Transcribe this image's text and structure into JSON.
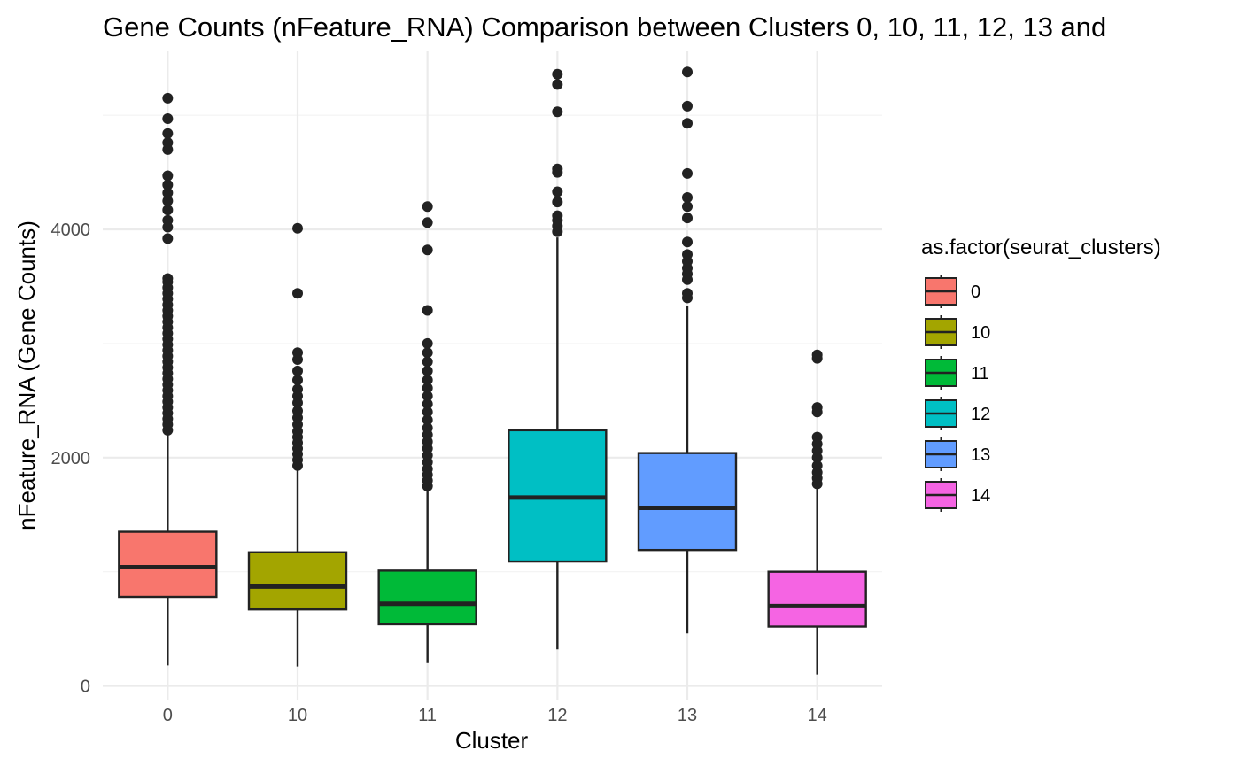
{
  "chart_data": {
    "type": "boxplot",
    "title": "Gene Counts (nFeature_RNA) Comparison between Clusters 0, 10, 11, 12, 13 and",
    "xlabel": "Cluster",
    "ylabel": "nFeature_RNA (Gene Counts)",
    "ylim": [
      -120,
      5560
    ],
    "yticks": [
      0,
      2000,
      4000
    ],
    "ytick_labels": [
      "0",
      "2000",
      "4000"
    ],
    "grid": true,
    "legend": {
      "title": "as.factor(seurat_clusters)",
      "position": "right"
    },
    "categories": [
      "0",
      "10",
      "11",
      "12",
      "13",
      "14"
    ],
    "boxes": [
      {
        "cluster": "0",
        "color": "#F8766D",
        "whisker_low": 180,
        "q1": 780,
        "median": 1040,
        "q3": 1350,
        "whisker_high": 2230,
        "outliers": [
          2240,
          2290,
          2340,
          2390,
          2440,
          2490,
          2540,
          2590,
          2640,
          2690,
          2740,
          2790,
          2840,
          2890,
          2940,
          2990,
          3040,
          3090,
          3140,
          3190,
          3240,
          3290,
          3340,
          3390,
          3440,
          3490,
          3540,
          3570,
          3920,
          4020,
          4080,
          4170,
          4250,
          4320,
          4390,
          4470,
          4700,
          4760,
          4840,
          4970,
          5150
        ]
      },
      {
        "cluster": "10",
        "color": "#A3A500",
        "whisker_low": 170,
        "q1": 670,
        "median": 870,
        "q3": 1170,
        "whisker_high": 1900,
        "outliers": [
          1930,
          1980,
          2030,
          2080,
          2130,
          2180,
          2230,
          2290,
          2350,
          2410,
          2480,
          2540,
          2600,
          2680,
          2760,
          2860,
          2920,
          3440,
          4010
        ]
      },
      {
        "cluster": "11",
        "color": "#00BA38",
        "whisker_low": 200,
        "q1": 540,
        "median": 720,
        "q3": 1010,
        "whisker_high": 1730,
        "outliers": [
          1750,
          1800,
          1850,
          1900,
          1960,
          2020,
          2080,
          2140,
          2200,
          2260,
          2330,
          2400,
          2470,
          2540,
          2610,
          2680,
          2760,
          2840,
          2920,
          3000,
          3290,
          3820,
          4060,
          4200
        ]
      },
      {
        "cluster": "12",
        "color": "#00BFC4",
        "whisker_low": 320,
        "q1": 1090,
        "median": 1650,
        "q3": 2240,
        "whisker_high": 3930,
        "outliers": [
          3980,
          4030,
          4080,
          4120,
          4240,
          4330,
          4500,
          4530,
          5030,
          5270,
          5360
        ]
      },
      {
        "cluster": "13",
        "color": "#619CFF",
        "whisker_low": 460,
        "q1": 1190,
        "median": 1560,
        "q3": 2040,
        "whisker_high": 3330,
        "outliers": [
          3400,
          3440,
          3560,
          3610,
          3660,
          3720,
          3780,
          3890,
          4100,
          4200,
          4280,
          4490,
          4930,
          5080,
          5380
        ]
      },
      {
        "cluster": "14",
        "color": "#F564E3",
        "whisker_low": 100,
        "q1": 520,
        "median": 700,
        "q3": 1000,
        "whisker_high": 1740,
        "outliers": [
          1770,
          1820,
          1870,
          1930,
          2000,
          2060,
          2120,
          2180,
          2400,
          2440,
          2870,
          2900
        ]
      }
    ]
  }
}
